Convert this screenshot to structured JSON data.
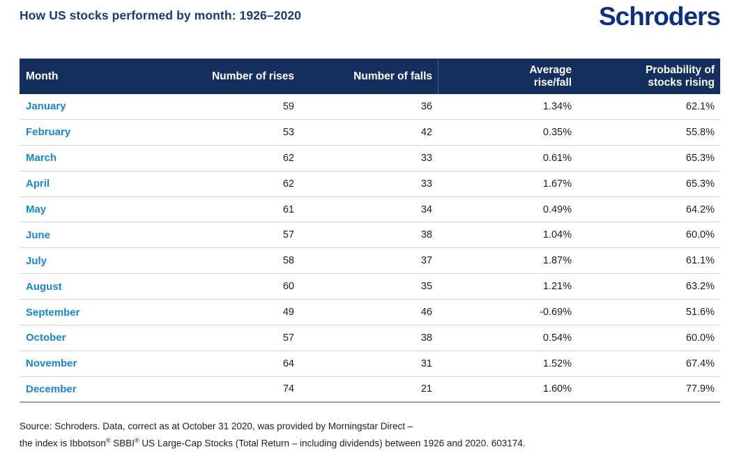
{
  "title": "How US stocks performed by month: 1926–2020",
  "logo": "Schroders",
  "colors": {
    "header_navy": "#142f5e",
    "title_navy": "#1b3a70",
    "logo_blue": "#0e2f7d",
    "month_blue": "#1a86cd",
    "row_separator": "#cdd3d9",
    "table_bottom_border": "#9aa1a8"
  },
  "table": {
    "columns": [
      {
        "label": "Month",
        "label2": ""
      },
      {
        "label": "Number of rises",
        "label2": ""
      },
      {
        "label": "Number of falls",
        "label2": ""
      },
      {
        "label": "Average",
        "label2": "rise/fall"
      },
      {
        "label": "Probability of",
        "label2": "stocks rising"
      }
    ],
    "rows": [
      {
        "month": "January",
        "rises": "59",
        "falls": "36",
        "avg": "1.34%",
        "prob": "62.1%"
      },
      {
        "month": "February",
        "rises": "53",
        "falls": "42",
        "avg": "0.35%",
        "prob": "55.8%"
      },
      {
        "month": "March",
        "rises": "62",
        "falls": "33",
        "avg": "0.61%",
        "prob": "65.3%"
      },
      {
        "month": "April",
        "rises": "62",
        "falls": "33",
        "avg": "1.67%",
        "prob": "65.3%"
      },
      {
        "month": "May",
        "rises": "61",
        "falls": "34",
        "avg": "0.49%",
        "prob": "64.2%"
      },
      {
        "month": "June",
        "rises": "57",
        "falls": "38",
        "avg": "1.04%",
        "prob": "60.0%"
      },
      {
        "month": "July",
        "rises": "58",
        "falls": "37",
        "avg": "1.87%",
        "prob": "61.1%"
      },
      {
        "month": "August",
        "rises": "60",
        "falls": "35",
        "avg": "1.21%",
        "prob": "63.2%"
      },
      {
        "month": "September",
        "rises": "49",
        "falls": "46",
        "avg": "-0.69%",
        "prob": "51.6%"
      },
      {
        "month": "October",
        "rises": "57",
        "falls": "38",
        "avg": "0.54%",
        "prob": "60.0%"
      },
      {
        "month": "November",
        "rises": "64",
        "falls": "31",
        "avg": "1.52%",
        "prob": "67.4%"
      },
      {
        "month": "December",
        "rises": "74",
        "falls": "21",
        "avg": "1.60%",
        "prob": "77.9%"
      }
    ]
  },
  "footnote": {
    "line1": "Source: Schroders. Data, correct as at October 31 2020, was provided by Morningstar Direct –",
    "line2_parts": [
      "the index is Ibbotson",
      "®",
      " SBBI",
      "®",
      " US Large-Cap Stocks (Total Return – including dividends) between 1926 and 2020. 603174."
    ]
  },
  "chart_data": {
    "type": "table",
    "title": "How US stocks performed by month: 1926–2020",
    "columns": [
      "Month",
      "Number of rises",
      "Number of falls",
      "Average rise/fall",
      "Probability of stocks rising"
    ],
    "rows": [
      [
        "January",
        59,
        36,
        "1.34%",
        "62.1%"
      ],
      [
        "February",
        53,
        42,
        "0.35%",
        "55.8%"
      ],
      [
        "March",
        62,
        33,
        "0.61%",
        "65.3%"
      ],
      [
        "April",
        62,
        33,
        "1.67%",
        "65.3%"
      ],
      [
        "May",
        61,
        34,
        "0.49%",
        "64.2%"
      ],
      [
        "June",
        57,
        38,
        "1.04%",
        "60.0%"
      ],
      [
        "July",
        58,
        37,
        "1.87%",
        "61.1%"
      ],
      [
        "August",
        60,
        35,
        "1.21%",
        "63.2%"
      ],
      [
        "September",
        49,
        46,
        "-0.69%",
        "51.6%"
      ],
      [
        "October",
        57,
        38,
        "0.54%",
        "60.0%"
      ],
      [
        "November",
        64,
        31,
        "1.52%",
        "67.4%"
      ],
      [
        "December",
        74,
        21,
        "1.60%",
        "77.9%"
      ]
    ],
    "source": "Schroders / Morningstar Direct, Ibbotson SBBI US Large-Cap Stocks Total Return, data as at October 31 2020"
  }
}
